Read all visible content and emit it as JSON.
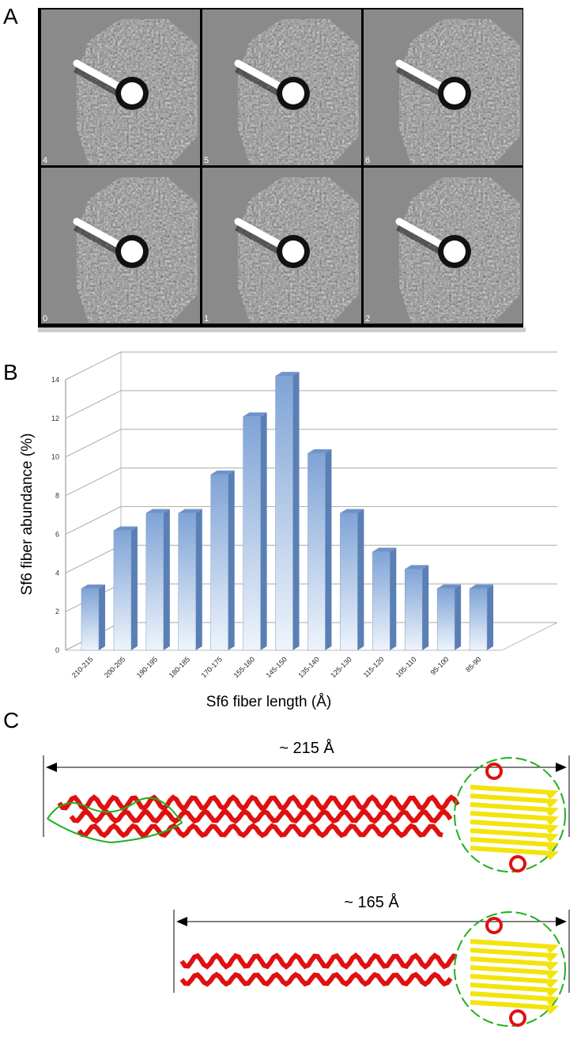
{
  "panel_labels": [
    "A",
    "B",
    "C"
  ],
  "micrograph_labels": [
    "4",
    "5",
    "6",
    "0",
    "1",
    "2"
  ],
  "chart_data": {
    "type": "bar3d",
    "y_label": "Sf6 fiber abundance (%)",
    "x_label": "Sf6 fiber length (Å)",
    "categories": [
      "210-215",
      "200-205",
      "190-195",
      "180-185",
      "170-175",
      "155-160",
      "145-150",
      "135-140",
      "125-130",
      "115-120",
      "105-110",
      "95-100",
      "85-90"
    ],
    "values": [
      3.2,
      6.2,
      7.1,
      7.1,
      9.1,
      12.1,
      14.2,
      10.2,
      7.1,
      5.1,
      4.2,
      3.2,
      3.2
    ],
    "color": "#8fb0dc",
    "ylim": [
      0,
      14
    ],
    "yticks": [
      0,
      2,
      4,
      6,
      8,
      10,
      12,
      14
    ],
    "grid": true
  },
  "measurements": [
    "~ 215 Å",
    "~ 165 Å"
  ]
}
